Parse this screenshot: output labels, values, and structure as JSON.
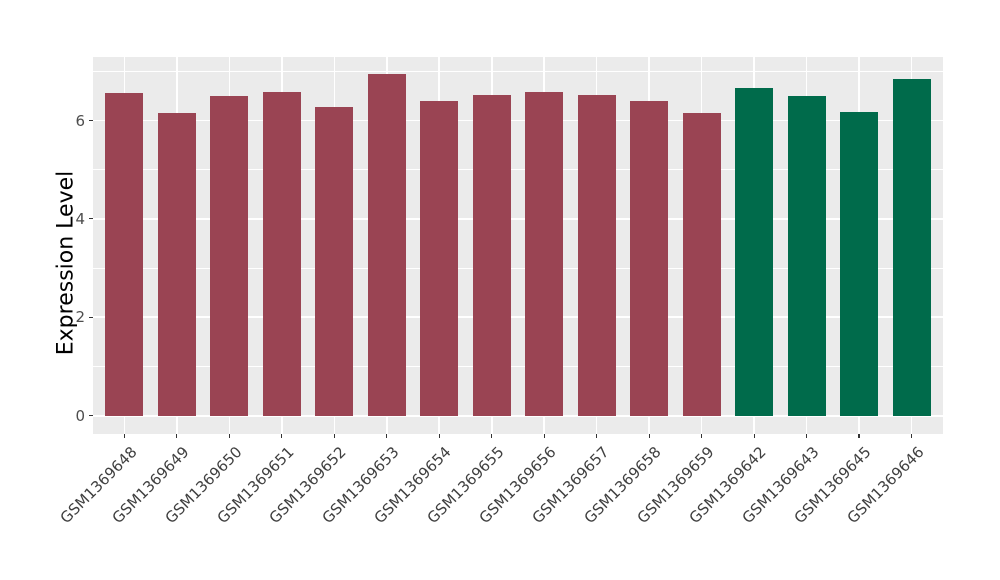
{
  "chart_data": {
    "type": "bar",
    "title": "",
    "xlabel": "",
    "ylabel": "Expression Level",
    "categories": [
      "GSM1369648",
      "GSM1369649",
      "GSM1369650",
      "GSM1369651",
      "GSM1369652",
      "GSM1369653",
      "GSM1369654",
      "GSM1369655",
      "GSM1369656",
      "GSM1369657",
      "GSM1369658",
      "GSM1369659",
      "GSM1369642",
      "GSM1369643",
      "GSM1369645",
      "GSM1369646"
    ],
    "values": [
      6.56,
      6.16,
      6.5,
      6.58,
      6.28,
      6.94,
      6.4,
      6.52,
      6.58,
      6.51,
      6.4,
      6.16,
      6.66,
      6.5,
      6.17,
      6.84
    ],
    "groups": [
      "group1",
      "group1",
      "group1",
      "group1",
      "group1",
      "group1",
      "group1",
      "group1",
      "group1",
      "group1",
      "group1",
      "group1",
      "group2",
      "group2",
      "group2",
      "group2"
    ],
    "group_colors": {
      "group1": "#9A4453",
      "group2": "#006B4B"
    },
    "ylim": [
      0,
      7.29
    ],
    "yticks": [
      0,
      2,
      4,
      6
    ],
    "grid": {
      "major": [
        0,
        2,
        4,
        6
      ],
      "minor": [
        1,
        3,
        5,
        7
      ],
      "color": "#FFFFFF",
      "vertical_major": "at-each-category"
    },
    "panel_bg": "#EBEBEB",
    "page_bg": "#FFFFFF",
    "tick_color": "#333333",
    "legend": "none"
  }
}
